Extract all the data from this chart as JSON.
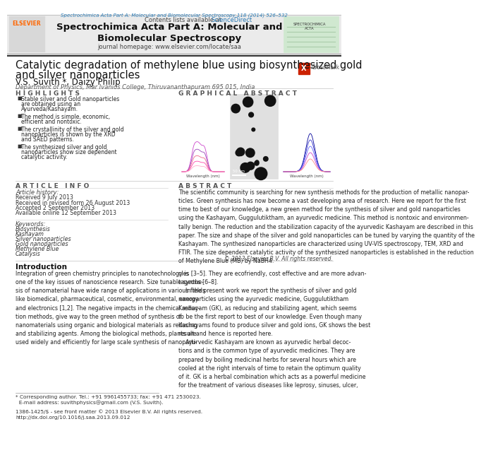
{
  "page_title_journal": "Spectrochimica Acta Part A: Molecular and\nBiomolecular Spectroscopy",
  "page_title_small": "Spectrochimica Acta Part A: Molecular and Biomolecular Spectroscopy 118 (2014) 526–532",
  "journal_homepage": "journal homepage: www.elsevier.com/locate/saa",
  "contents_lists": "Contents lists available at ",
  "science_direct": "ScienceDirect",
  "article_title_line1": "Catalytic degradation of methylene blue using biosynthesized gold",
  "article_title_line2": "and silver nanoparticles",
  "authors": "V.S. Suvith *, Daizy Philip",
  "affiliation": "Department of Physics, Mar Ivanios College, Thiruvananthapuram 695 015, India",
  "highlights_title": "H I G H L I G H T S",
  "highlights": [
    "Stable silver and Gold nanoparticles\nare obtained using an\nAyurveda/Kashayam.",
    "The method is simple, economic,\nefficient and nontoxic.",
    "The crystallinity of the silver and gold\nnanoparticles is shown by the XRD\nand SAED patterns.",
    "The synthesized silver and gold\nnanoparticles show size dependent\ncatalytic activity."
  ],
  "graphical_abstract_title": "G R A P H I C A L   A B S T R A C T",
  "article_info_title": "A R T I C L E   I N F O",
  "article_history_title": "Article history:",
  "article_history": [
    "Received 9 July 2013",
    "Received in revised form 26 August 2013",
    "Accepted 2 September 2013",
    "Available online 12 September 2013"
  ],
  "keywords_title": "Keywords:",
  "keywords": [
    "Biosynthesis",
    "Kashayam",
    "Silver nanoparticles",
    "Gold nanoparticles",
    "Methylene Blue",
    "Catalysis"
  ],
  "abstract_title": "A B S T R A C T",
  "abstract_text": "The scientific community is searching for new synthesis methods for the production of metallic nanopar-\nticles. Green synthesis has now become a vast developing area of research. Here we report for the first\ntime to best of our knowledge, a new green method for the synthesis of silver and gold nanoparticles\nusing the Kashayam, Guggulutiktham, an ayurvedic medicine. This method is nontoxic and environmen-\ntally benign. The reduction and the stabilization capacity of the ayurvedic Kashayam are described in this\npaper. The size and shape of the silver and gold nanoparticles can be tuned by varying the quantity of the\nKashayam. The synthesized nanoparticles are characterized using UV-VIS spectroscopy, TEM, XRD and\nFTIR. The size dependent catalytic activity of the synthesized nanoparticles is established in the reduction\nof Methylene Blue (MB) by NaBH4.",
  "copyright": "© 2013 Elsevier B.V. All rights reserved.",
  "introduction_title": "Introduction",
  "intro_text_col1": "Integration of green chemistry principles to nanotechnology is\none of the key issues of nanoscience research. Size tunable synthe-\nsis of nanomaterial have wide range of applications in various fields\nlike biomedical, pharmaceutical, cosmetic, environmental, energy\nand electronics [1,2]. The negative impacts in the chemical reduc-\ntion methods, give way to the green method of synthesis of\nnanomaterials using organic and biological materials as reducing\nand stabilizing agents. Among the biological methods, plants are\nused widely and efficiently for large scale synthesis of nanoparti-",
  "intro_text_col2": "cles [3–5]. They are ecofriendly, cost effective and are more advan-\ntageous [6–8].\n    In the present work we report the synthesis of silver and gold\nnanoparticles using the ayurvedic medicine, Guggulutiktham\nKashayam (GK), as reducing and stabilizing agent, which seems\nto be the first report to best of our knowledge. Even though many\nKashayams found to produce silver and gold ions, GK shows the best\nresult and hence is reported here.\n    Ayurvedic Kashayam are known as ayurvedic herbal decoc-\ntions and is the common type of ayurvedic medicines. They are\nprepared by boiling medicinal herbs for several hours which are\ncooled at the right intervals of time to retain the optimum quality\nof it. GK is a herbal combination which acts as a powerful medicine\nfor the treatment of various diseases like leprosy, sinuses, ulcer,",
  "footnote_line1": "* Corresponding author. Tel.: +91 9961455733; fax: +91 471 2530023.",
  "footnote_line2": "  E-mail address: suvithphysics@gmail.com (V.S. Suvith).",
  "issn_text": "1386-1425/$ - see front matter © 2013 Elsevier B.V. All rights reserved.\nhttp://dx.doi.org/10.1016/j.saa.2013.09.012",
  "elsevier_color": "#FF6600",
  "link_color": "#2a7ab5",
  "background_color": "#ffffff",
  "header_bg": "#f0f0f0",
  "section_color": "#555555"
}
